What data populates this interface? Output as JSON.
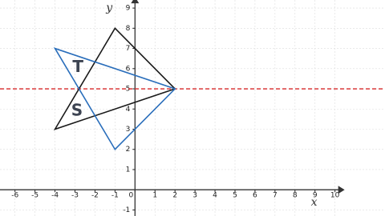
{
  "chart_data": {
    "type": "polygon",
    "x_label": "x",
    "y_label": "y",
    "xlim": [
      -6.75,
      12.5
    ],
    "ylim": [
      -1.3,
      9.4
    ],
    "xticks": [
      -6,
      -5,
      -4,
      -3,
      -2,
      -1,
      0,
      1,
      2,
      3,
      4,
      5,
      6,
      7,
      8,
      9,
      10
    ],
    "yticks": [
      -1,
      1,
      2,
      3,
      4,
      5,
      6,
      7,
      8,
      9
    ],
    "grid": true,
    "series": [
      {
        "color": "#1a1a1a",
        "x": [
          -1,
          2,
          -4
        ],
        "y": [
          8,
          5,
          3
        ]
      },
      {
        "color": "#2a6ebb",
        "x": [
          -4,
          2,
          -1
        ],
        "y": [
          7,
          5,
          2
        ]
      }
    ],
    "reference_line": {
      "y": 5,
      "color": "#d62728",
      "style": "dashed"
    },
    "annotations": [
      {
        "text": "T",
        "x": -2.85,
        "y": 6.05
      },
      {
        "text": "S",
        "x": -2.9,
        "y": 3.9
      }
    ]
  }
}
